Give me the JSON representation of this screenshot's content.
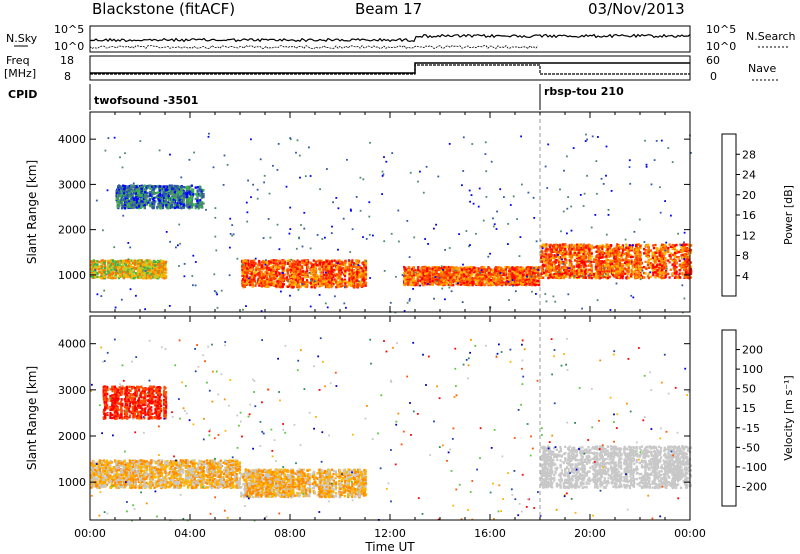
{
  "header": {
    "station": "Blackstone (fitACF)",
    "beam": "Beam 17",
    "date": "03/Nov/2013"
  },
  "strip_labels": {
    "nsky": "N.Sky",
    "nsky_top": "10^5",
    "nsky_bottom": "10^0",
    "nsearch": "N.Search",
    "nsearch_top": "10^5",
    "nsearch_bottom": "10^0",
    "freq": "Freq",
    "freq_unit": "[MHz]",
    "freq_top": "18",
    "freq_bottom": "8",
    "nave": "Nave",
    "nave_top": "60",
    "nave_bottom": "0",
    "cpid": "CPID"
  },
  "programs": [
    {
      "name": "twofsound -3501",
      "start_hour": 0
    },
    {
      "name": "rbsp-tou 210",
      "start_hour": 18
    }
  ],
  "colors": {
    "power_scale": [
      "#0000ff",
      "#2f5aa8",
      "#4b8a6a",
      "#3cb44b",
      "#b4d232",
      "#ffb400",
      "#ff7800",
      "#ff3c00",
      "#ff0000"
    ],
    "velocity_scale": [
      "#ff0000",
      "#ff5000",
      "#ff8c00",
      "#ffb400",
      "#c8c8c8",
      "#c8c8c8",
      "#5ac83c",
      "#2e8b57",
      "#1e46b4",
      "#0000c8"
    ]
  },
  "chart_data": [
    {
      "type": "heatmap",
      "panel": "power",
      "ylabel": "Slant Range [km]",
      "xlabel": "Time UT",
      "xlim_hours": [
        0,
        24
      ],
      "ylim_km": [
        180,
        4600
      ],
      "x_ticks": [
        "00:00",
        "04:00",
        "08:00",
        "12:00",
        "16:00",
        "20:00",
        "00:00"
      ],
      "y_ticks": [
        "1000",
        "2000",
        "3000",
        "4000"
      ],
      "colorbar": {
        "label": "Power [dB]",
        "ticks": [
          "4",
          "8",
          "12",
          "16",
          "20",
          "24",
          "28"
        ],
        "range": [
          0,
          32
        ]
      },
      "bands": [
        {
          "t": [
            0,
            3
          ],
          "r": [
            950,
            1350
          ],
          "level": "mid"
        },
        {
          "t": [
            1,
            4.5
          ],
          "r": [
            2500,
            3000
          ],
          "level": "low"
        },
        {
          "t": [
            6,
            11
          ],
          "r": [
            750,
            1350
          ],
          "level": "high"
        },
        {
          "t": [
            12.5,
            18
          ],
          "r": [
            800,
            1200
          ],
          "level": "high"
        },
        {
          "t": [
            18,
            24
          ],
          "r": [
            950,
            1700
          ],
          "level": "high"
        }
      ]
    },
    {
      "type": "heatmap",
      "panel": "velocity",
      "ylabel": "Slant Range [km]",
      "xlabel": "Time UT",
      "xlim_hours": [
        0,
        24
      ],
      "ylim_km": [
        180,
        4600
      ],
      "x_ticks": [
        "00:00",
        "04:00",
        "08:00",
        "12:00",
        "16:00",
        "20:00",
        "00:00"
      ],
      "y_ticks": [
        "1000",
        "2000",
        "3000",
        "4000"
      ],
      "colorbar": {
        "label": "Velocity [m s⁻¹]",
        "ticks": [
          "200",
          "100",
          "50",
          "15",
          "-15",
          "-50",
          "-100",
          "-200"
        ],
        "range": [
          -250,
          250
        ]
      },
      "bands": [
        {
          "t": [
            0.5,
            3
          ],
          "r": [
            2400,
            3100
          ],
          "level": "towards_fast"
        },
        {
          "t": [
            0,
            6
          ],
          "r": [
            900,
            1500
          ],
          "level": "slow_away"
        },
        {
          "t": [
            6,
            11
          ],
          "r": [
            700,
            1300
          ],
          "level": "slow_away"
        },
        {
          "t": [
            18,
            24
          ],
          "r": [
            900,
            1800
          ],
          "level": "ground"
        }
      ]
    }
  ]
}
